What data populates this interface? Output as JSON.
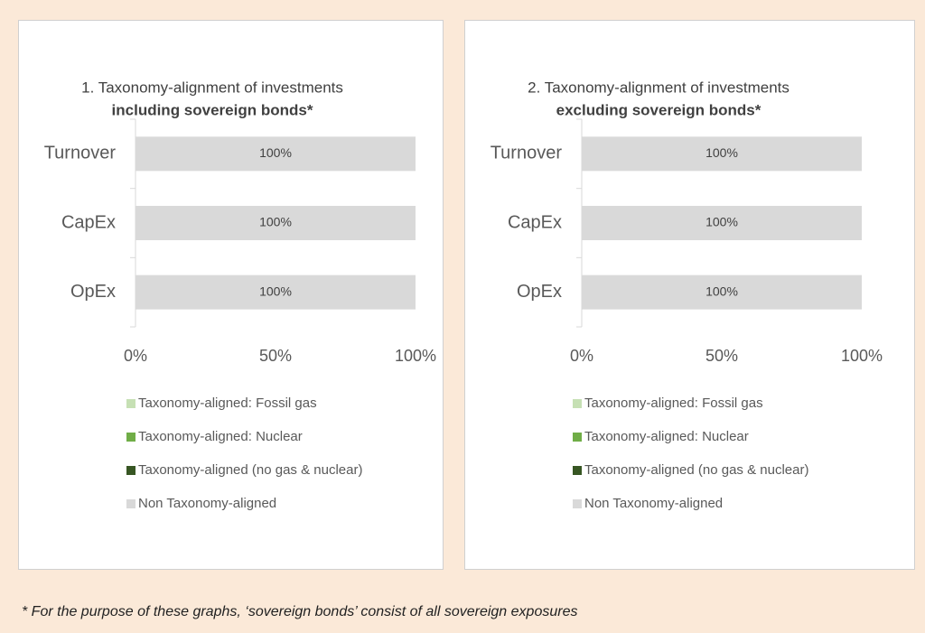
{
  "chart_data": [
    {
      "type": "bar",
      "orientation": "horizontal",
      "stacked": true,
      "title": "1. Taxonomy-alignment of investments",
      "subtitle": "including sovereign bonds*",
      "categories": [
        "Turnover",
        "CapEx",
        "OpEx"
      ],
      "series": [
        {
          "name": "Taxonomy-aligned: Fossil gas",
          "color": "#c6e0b4",
          "values": [
            0,
            0,
            0
          ]
        },
        {
          "name": "Taxonomy-aligned: Nuclear",
          "color": "#70ad47",
          "values": [
            0,
            0,
            0
          ]
        },
        {
          "name": "Taxonomy-aligned (no gas & nuclear)",
          "color": "#375623",
          "values": [
            0,
            0,
            0
          ]
        },
        {
          "name": "Non Taxonomy-aligned",
          "color": "#d9d9d9",
          "values": [
            100,
            100,
            100
          ],
          "value_labels": [
            "100%",
            "100%",
            "100%"
          ]
        }
      ],
      "xlim": [
        0,
        100
      ],
      "xticks": [
        {
          "value": 0,
          "label": "0%"
        },
        {
          "value": 50,
          "label": "50%"
        },
        {
          "value": 100,
          "label": "100%"
        }
      ]
    },
    {
      "type": "bar",
      "orientation": "horizontal",
      "stacked": true,
      "title": "2. Taxonomy-alignment of investments",
      "subtitle": "excluding sovereign bonds*",
      "categories": [
        "Turnover",
        "CapEx",
        "OpEx"
      ],
      "series": [
        {
          "name": "Taxonomy-aligned: Fossil gas",
          "color": "#c6e0b4",
          "values": [
            0,
            0,
            0
          ]
        },
        {
          "name": "Taxonomy-aligned: Nuclear",
          "color": "#70ad47",
          "values": [
            0,
            0,
            0
          ]
        },
        {
          "name": "Taxonomy-aligned (no gas & nuclear)",
          "color": "#375623",
          "values": [
            0,
            0,
            0
          ]
        },
        {
          "name": "Non Taxonomy-aligned",
          "color": "#d9d9d9",
          "values": [
            100,
            100,
            100
          ],
          "value_labels": [
            "100%",
            "100%",
            "100%"
          ]
        }
      ],
      "xlim": [
        0,
        100
      ],
      "xticks": [
        {
          "value": 0,
          "label": "0%"
        },
        {
          "value": 50,
          "label": "50%"
        },
        {
          "value": 100,
          "label": "100%"
        }
      ]
    }
  ],
  "footnote": "* For the purpose of these graphs, ‘sovereign bonds’ consist of all sovereign exposures"
}
